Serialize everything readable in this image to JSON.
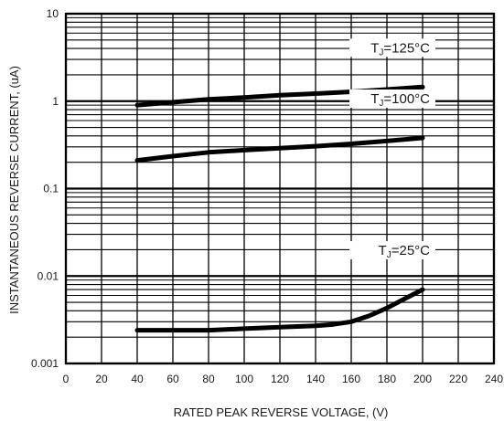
{
  "chart_data": {
    "type": "line",
    "xlabel": "RATED PEAK REVERSE VOLTAGE, (V)",
    "ylabel": "INSTANTANEOUS REVERSE CURRENT, (uA)",
    "xlim": [
      0,
      240
    ],
    "ylim": [
      0.001,
      10
    ],
    "yscale": "log",
    "grid": true,
    "x_ticks": [
      "0",
      "20",
      "40",
      "60",
      "80",
      "100",
      "120",
      "140",
      "160",
      "180",
      "200",
      "220",
      "240"
    ],
    "y_ticks": [
      "0.001",
      "0.01",
      "0.1",
      "1",
      "10"
    ],
    "series": [
      {
        "label_main": "T",
        "label_sub": "J",
        "label_rest": "=125°C",
        "x": [
          40,
          80,
          100,
          120,
          140,
          160,
          180,
          200
        ],
        "y": [
          0.9,
          1.05,
          1.1,
          1.17,
          1.22,
          1.28,
          1.36,
          1.45
        ]
      },
      {
        "label_main": "T",
        "label_sub": "J",
        "label_rest": "=100°C",
        "x": [
          40,
          60,
          80,
          100,
          120,
          140,
          160,
          180,
          200
        ],
        "y": [
          0.21,
          0.235,
          0.26,
          0.275,
          0.29,
          0.305,
          0.325,
          0.35,
          0.38
        ]
      },
      {
        "label_main": "T",
        "label_sub": "J",
        "label_rest": "=25°C",
        "x": [
          40,
          60,
          80,
          100,
          120,
          140,
          150,
          160,
          170,
          180,
          190,
          200
        ],
        "y": [
          0.0024,
          0.0024,
          0.0024,
          0.0025,
          0.0026,
          0.0027,
          0.0028,
          0.003,
          0.0035,
          0.0043,
          0.0055,
          0.007
        ]
      }
    ]
  }
}
